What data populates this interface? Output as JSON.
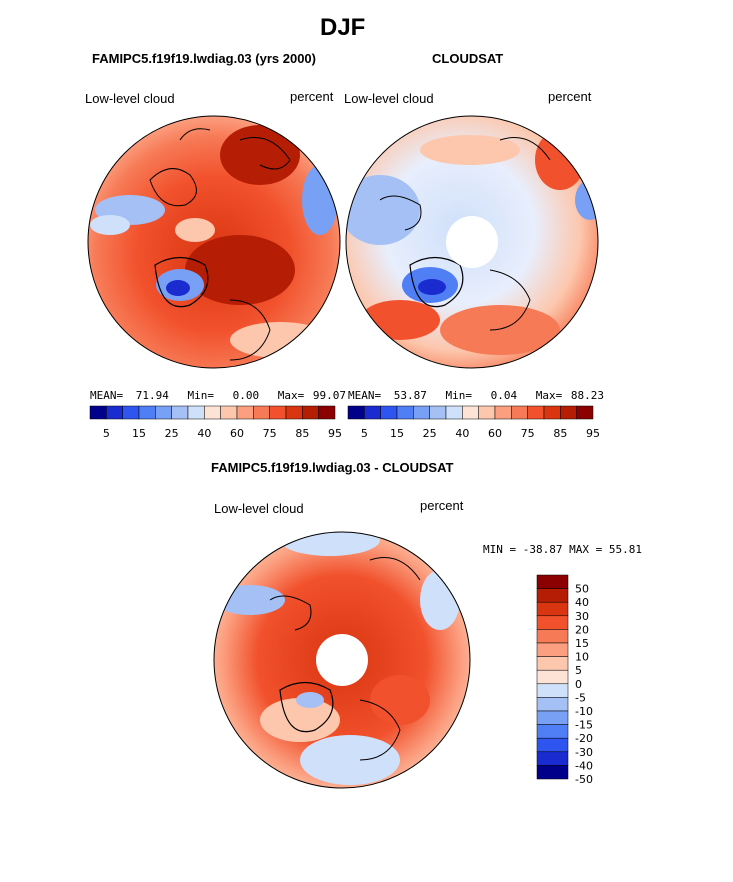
{
  "page": {
    "season_title": "DJF",
    "bottom_title": "FAMIPC5.f19f19.lwdiag.03 - CLOUDSAT"
  },
  "chart_data": [
    {
      "type": "polar-contour-map",
      "title": "FAMIPC5.f19f19.lwdiag.03 (yrs 2000)",
      "left_label": "Low-level cloud",
      "right_label": "percent",
      "variable": "Low-level cloud",
      "units": "percent",
      "mean_label": "MEAN=",
      "mean": "71.94",
      "min_label": "Min=",
      "min": "0.00",
      "max_label": "Max=",
      "max": "99.07",
      "colorbar_levels": [
        "5",
        "10",
        "15",
        "20",
        "25",
        "30",
        "40",
        "50",
        "60",
        "70",
        "75",
        "80",
        "85",
        "90",
        "95"
      ],
      "colorbar_tick_labels": [
        "5",
        "15",
        "25",
        "40",
        "60",
        "75",
        "85",
        "95"
      ],
      "colorbar_colors": [
        "#00008b",
        "#1a2bd0",
        "#2f55f0",
        "#4f7ef5",
        "#78a0f5",
        "#a4c0f5",
        "#cfe0fa",
        "#fde3d6",
        "#fcc7ad",
        "#fb9f80",
        "#f77a56",
        "#f1512c",
        "#d93511",
        "#b51e05",
        "#8b0000"
      ]
    },
    {
      "type": "polar-contour-map",
      "title": "CLOUDSAT",
      "left_label": "Low-level cloud",
      "right_label": "percent",
      "variable": "Low-level cloud",
      "units": "percent",
      "mean_label": "MEAN=",
      "mean": "53.87",
      "min_label": "Min=",
      "min": "0.04",
      "max_label": "Max=",
      "max": "88.23",
      "colorbar_levels": [
        "5",
        "10",
        "15",
        "20",
        "25",
        "30",
        "40",
        "50",
        "60",
        "70",
        "75",
        "80",
        "85",
        "90",
        "95"
      ],
      "colorbar_tick_labels": [
        "5",
        "15",
        "25",
        "40",
        "60",
        "75",
        "85",
        "95"
      ],
      "colorbar_colors": [
        "#00008b",
        "#1a2bd0",
        "#2f55f0",
        "#4f7ef5",
        "#78a0f5",
        "#a4c0f5",
        "#cfe0fa",
        "#fde3d6",
        "#fcc7ad",
        "#fb9f80",
        "#f77a56",
        "#f1512c",
        "#d93511",
        "#b51e05",
        "#8b0000"
      ]
    },
    {
      "type": "polar-contour-map",
      "title": "FAMIPC5.f19f19.lwdiag.03 - CLOUDSAT",
      "left_label": "Low-level cloud",
      "right_label": "percent",
      "variable": "Low-level cloud difference",
      "units": "percent",
      "minmax_label": "MIN = -38.87 MAX =  55.81",
      "min": "-38.87",
      "max": "55.81",
      "colorbar_levels": [
        "50",
        "40",
        "30",
        "20",
        "15",
        "10",
        "5",
        "0",
        "-5",
        "-10",
        "-15",
        "-20",
        "-30",
        "-40",
        "-50"
      ],
      "colorbar_colors": [
        "#8b0000",
        "#b51e05",
        "#d93511",
        "#f1512c",
        "#f77a56",
        "#fb9f80",
        "#fcc7ad",
        "#fde3d6",
        "#cfe0fa",
        "#a4c0f5",
        "#78a0f5",
        "#4f7ef5",
        "#2f55f0",
        "#1a2bd0",
        "#00008b"
      ]
    }
  ]
}
